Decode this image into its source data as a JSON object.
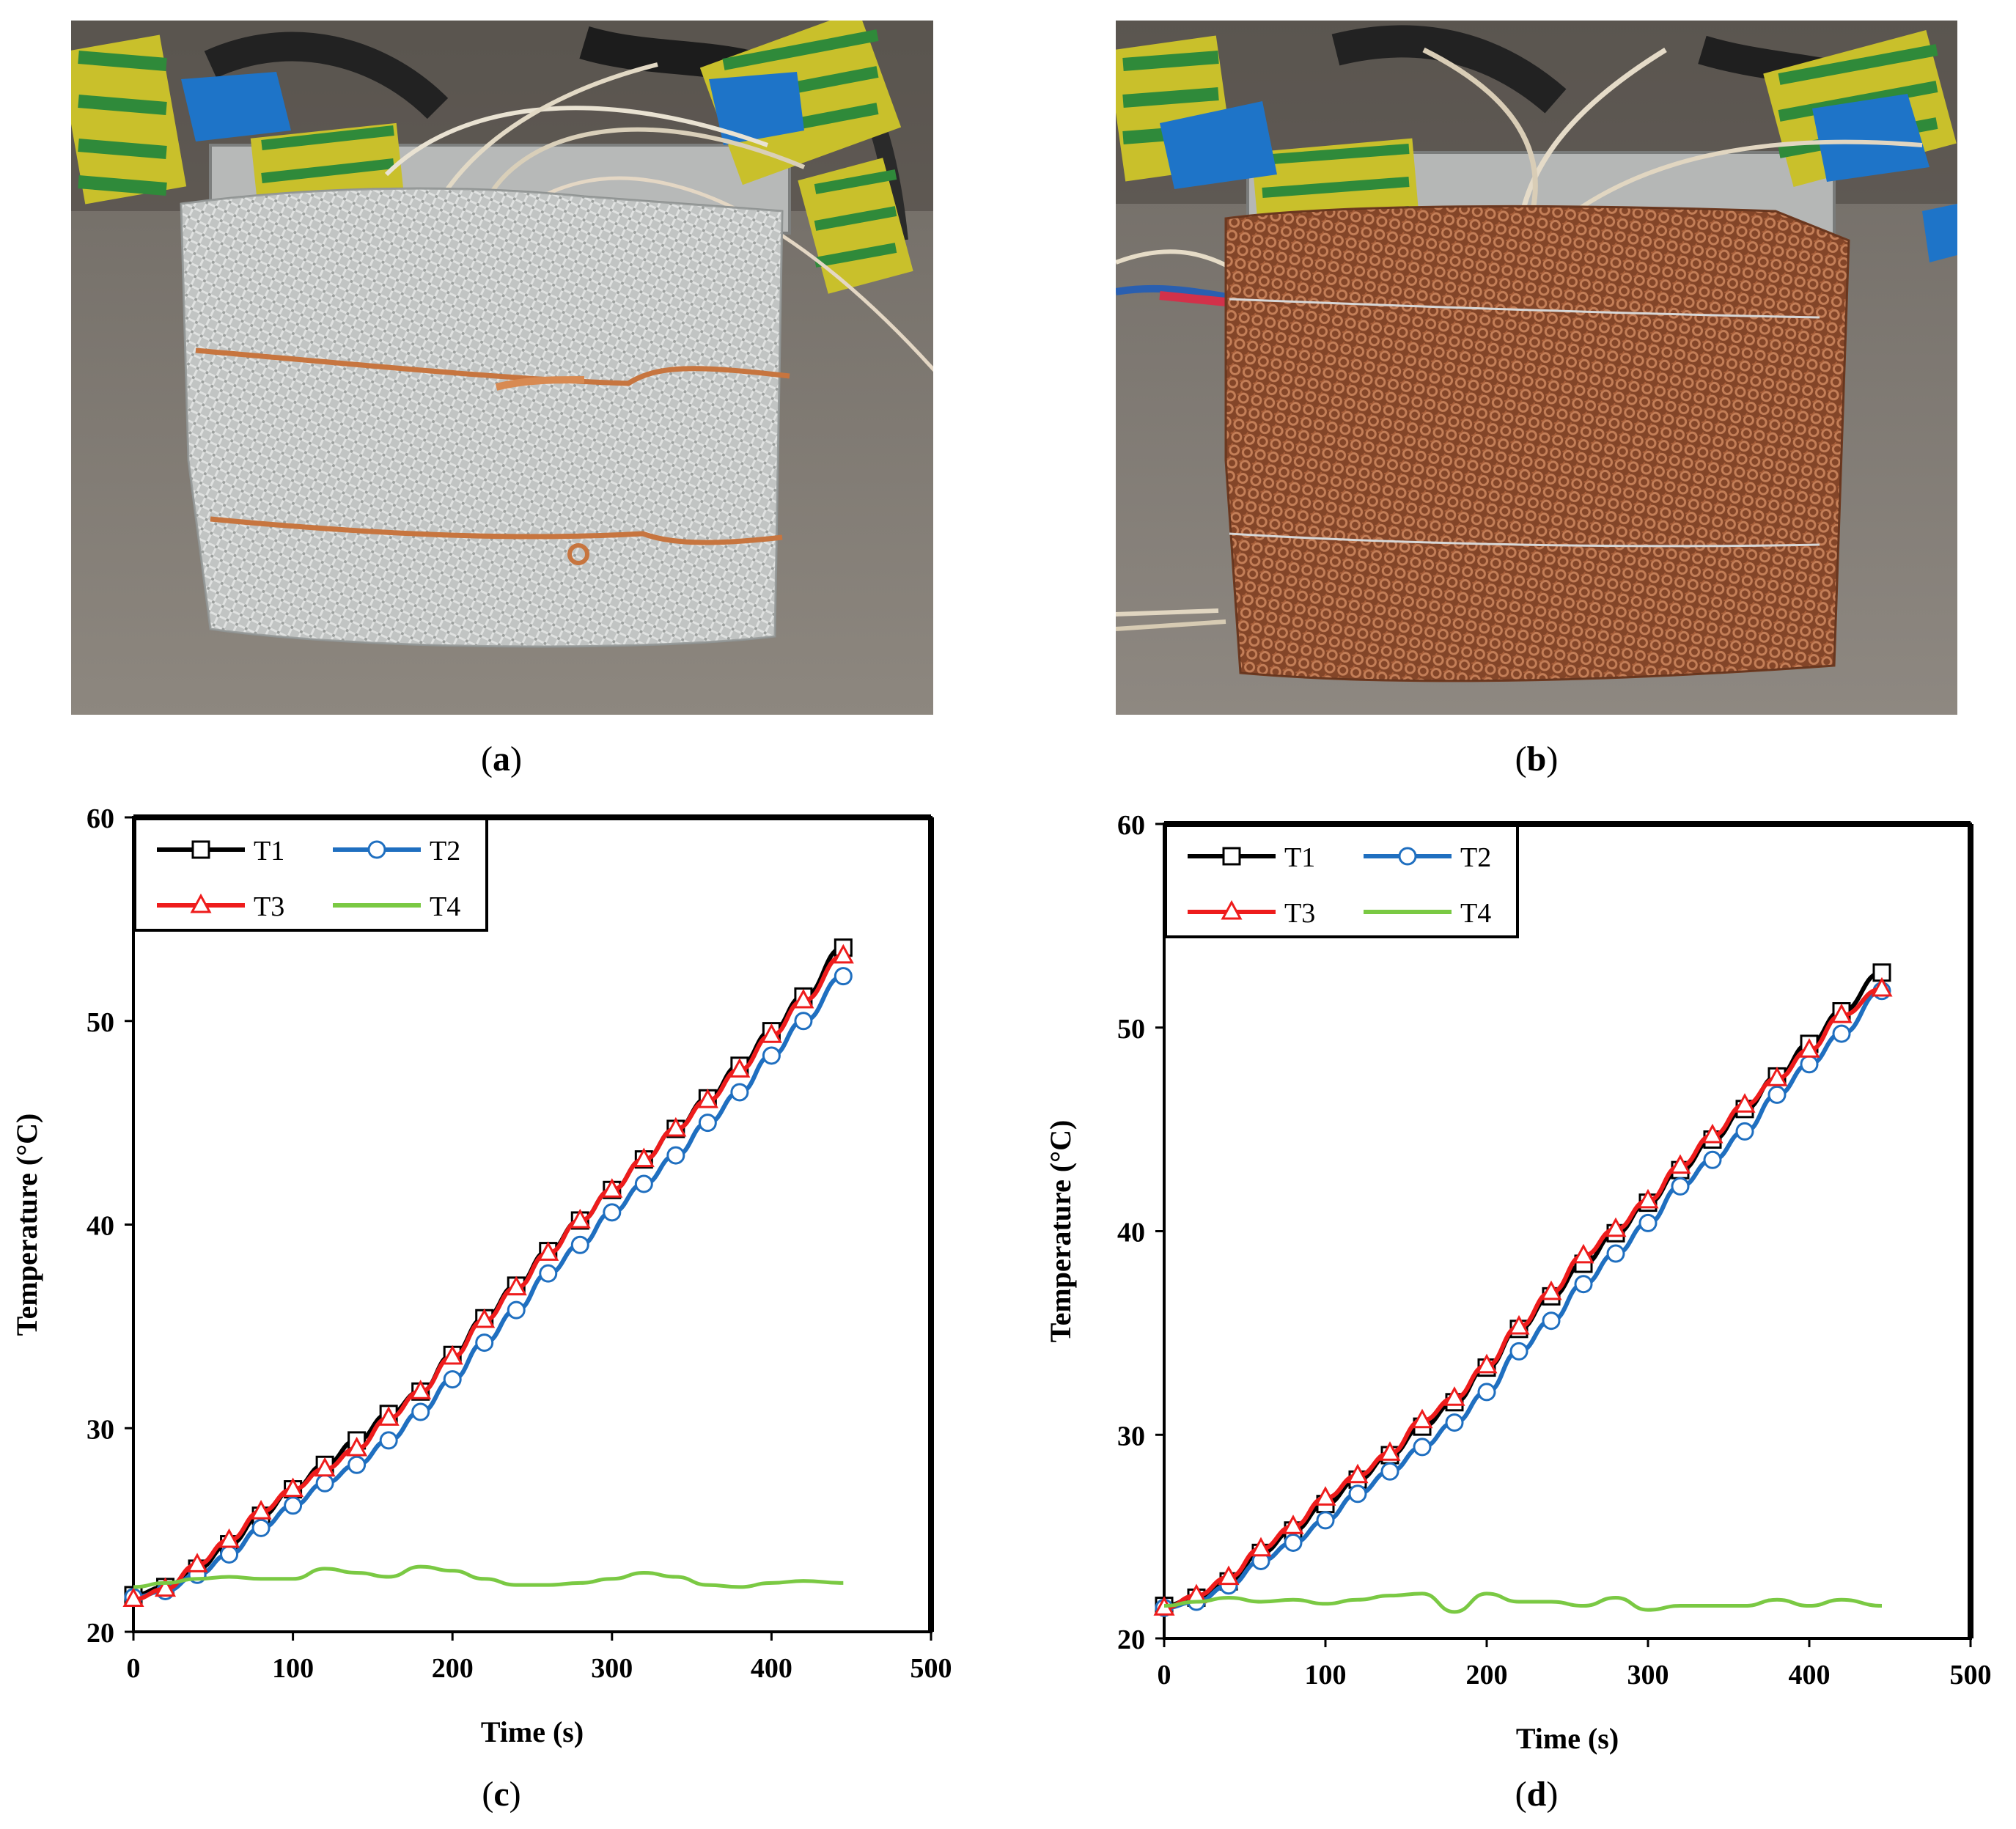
{
  "panels": [
    {
      "id": "a",
      "caption_letter": "a"
    },
    {
      "id": "b",
      "caption_letter": "b"
    },
    {
      "id": "c",
      "caption_letter": "c"
    },
    {
      "id": "d",
      "caption_letter": "d"
    }
  ],
  "photos": [
    {
      "id": "a",
      "description_icon": "battery-wrapped-in-aluminum-mesh-photo"
    },
    {
      "id": "b",
      "description_icon": "battery-wrapped-in-copper-mesh-photo"
    }
  ],
  "chart_data": [
    {
      "type": "line",
      "panel": "c",
      "xlabel": "Time (s)",
      "ylabel": "Temperature (°C)",
      "xlim": [
        0,
        500
      ],
      "ylim": [
        20,
        60
      ],
      "xticks": [
        0,
        100,
        200,
        300,
        400,
        500
      ],
      "yticks": [
        20,
        30,
        40,
        50,
        60
      ],
      "legend_position": "top-left",
      "series": [
        {
          "name": "T1",
          "color": "#000000",
          "marker": "square",
          "x": [
            0,
            20,
            40,
            60,
            80,
            100,
            120,
            140,
            160,
            180,
            200,
            220,
            240,
            260,
            280,
            300,
            320,
            340,
            360,
            380,
            400,
            420,
            445
          ],
          "y": [
            21.8,
            22.2,
            23.1,
            24.3,
            25.7,
            27.0,
            28.2,
            29.4,
            30.7,
            31.8,
            33.6,
            35.4,
            37.0,
            38.7,
            40.2,
            41.7,
            43.2,
            44.7,
            46.2,
            47.8,
            49.5,
            51.2,
            53.6
          ]
        },
        {
          "name": "T2",
          "color": "#1f6fc0",
          "marker": "circle",
          "x": [
            0,
            20,
            40,
            60,
            80,
            100,
            120,
            140,
            160,
            180,
            200,
            220,
            240,
            260,
            280,
            300,
            320,
            340,
            360,
            380,
            400,
            420,
            445
          ],
          "y": [
            21.7,
            22.0,
            22.8,
            23.8,
            25.1,
            26.2,
            27.3,
            28.2,
            29.4,
            30.8,
            32.4,
            34.2,
            35.8,
            37.6,
            39.0,
            40.6,
            42.0,
            43.4,
            45.0,
            46.5,
            48.3,
            50.0,
            52.2
          ]
        },
        {
          "name": "T3",
          "color": "#ee1c1c",
          "marker": "triangle",
          "x": [
            0,
            20,
            40,
            60,
            80,
            100,
            120,
            140,
            160,
            180,
            200,
            220,
            240,
            260,
            280,
            300,
            320,
            340,
            360,
            380,
            400,
            420,
            445
          ],
          "y": [
            21.6,
            22.1,
            23.3,
            24.5,
            25.9,
            27.0,
            28.0,
            29.0,
            30.5,
            31.8,
            33.5,
            35.3,
            36.9,
            38.6,
            40.2,
            41.7,
            43.2,
            44.7,
            46.1,
            47.6,
            49.3,
            51.0,
            53.2
          ]
        },
        {
          "name": "T4",
          "color": "#7ac943",
          "marker": "none",
          "x": [
            0,
            20,
            40,
            60,
            80,
            100,
            120,
            140,
            160,
            180,
            200,
            220,
            240,
            260,
            280,
            300,
            320,
            340,
            360,
            380,
            400,
            420,
            445
          ],
          "y": [
            22.2,
            22.4,
            22.6,
            22.7,
            22.6,
            22.6,
            23.1,
            22.9,
            22.7,
            23.2,
            23.0,
            22.6,
            22.3,
            22.3,
            22.4,
            22.6,
            22.9,
            22.7,
            22.3,
            22.2,
            22.4,
            22.5,
            22.4
          ]
        }
      ]
    },
    {
      "type": "line",
      "panel": "d",
      "xlabel": "Time (s)",
      "ylabel": "Temperature (°C)",
      "xlim": [
        0,
        500
      ],
      "ylim": [
        20,
        60
      ],
      "xticks": [
        0,
        100,
        200,
        300,
        400,
        500
      ],
      "yticks": [
        20,
        30,
        40,
        50,
        60
      ],
      "legend_position": "top-left",
      "series": [
        {
          "name": "T1",
          "color": "#000000",
          "marker": "square",
          "x": [
            0,
            20,
            40,
            60,
            80,
            100,
            120,
            140,
            160,
            180,
            200,
            220,
            240,
            260,
            280,
            300,
            320,
            340,
            360,
            380,
            400,
            420,
            445
          ],
          "y": [
            21.6,
            22.0,
            22.8,
            24.2,
            25.3,
            26.6,
            27.8,
            29.0,
            30.4,
            31.6,
            33.3,
            35.2,
            36.8,
            38.4,
            39.9,
            41.4,
            43.0,
            44.5,
            46.0,
            47.6,
            49.2,
            50.8,
            52.7
          ]
        },
        {
          "name": "T2",
          "color": "#1f6fc0",
          "marker": "circle",
          "x": [
            0,
            20,
            40,
            60,
            80,
            100,
            120,
            140,
            160,
            180,
            200,
            220,
            240,
            260,
            280,
            300,
            320,
            340,
            360,
            380,
            400,
            420,
            445
          ],
          "y": [
            21.5,
            21.8,
            22.6,
            23.8,
            24.7,
            25.8,
            27.1,
            28.2,
            29.4,
            30.6,
            32.1,
            34.1,
            35.6,
            37.4,
            38.9,
            40.4,
            42.2,
            43.5,
            44.9,
            46.7,
            48.2,
            49.7,
            51.8
          ]
        },
        {
          "name": "T3",
          "color": "#ee1c1c",
          "marker": "triangle",
          "x": [
            0,
            20,
            40,
            60,
            80,
            100,
            120,
            140,
            160,
            180,
            200,
            220,
            240,
            260,
            280,
            300,
            320,
            340,
            360,
            380,
            400,
            420,
            445
          ],
          "y": [
            21.5,
            22.1,
            23.0,
            24.4,
            25.5,
            26.9,
            28.0,
            29.1,
            30.7,
            31.8,
            33.4,
            35.3,
            37.0,
            38.8,
            40.1,
            41.5,
            43.2,
            44.7,
            46.2,
            47.5,
            48.9,
            50.6,
            51.9
          ]
        },
        {
          "name": "T4",
          "color": "#7ac943",
          "marker": "none",
          "x": [
            0,
            20,
            40,
            60,
            80,
            100,
            120,
            140,
            160,
            180,
            200,
            220,
            240,
            260,
            280,
            300,
            320,
            340,
            360,
            380,
            400,
            420,
            445
          ],
          "y": [
            21.6,
            21.8,
            22.0,
            21.8,
            21.9,
            21.7,
            21.9,
            22.1,
            22.2,
            21.3,
            22.2,
            21.8,
            21.8,
            21.6,
            22.0,
            21.4,
            21.6,
            21.6,
            21.6,
            21.9,
            21.6,
            21.9,
            21.6
          ]
        }
      ]
    }
  ]
}
